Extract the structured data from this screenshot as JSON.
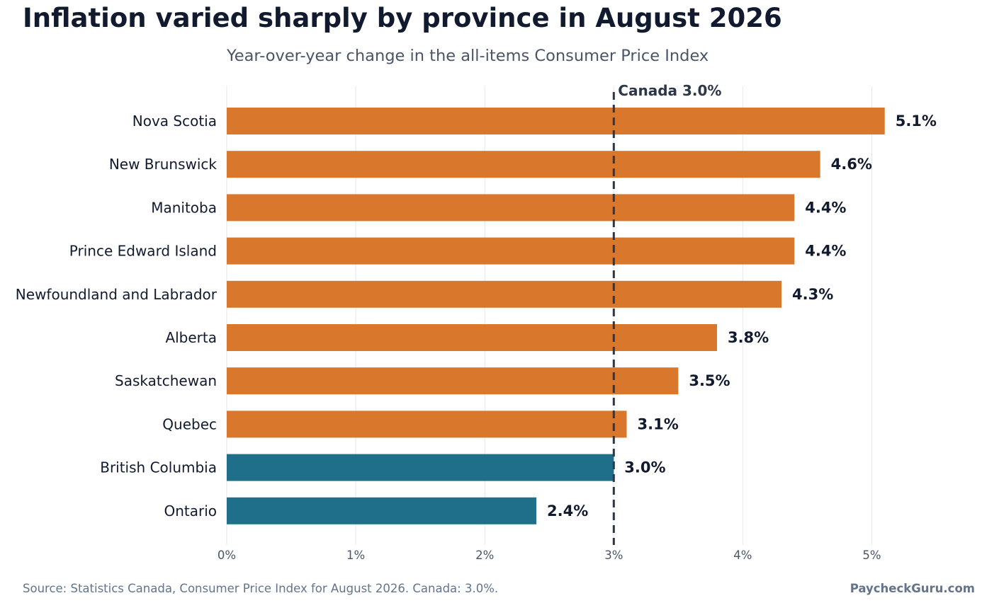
{
  "page": {
    "title": "Inflation varied sharply by province in August 2026",
    "subtitle": "Year-over-year change in the all-items Consumer Price Index",
    "source": "Source: Statistics Canada, Consumer Price Index for August 2026. Canada: 3.0%.",
    "brand": "PaycheckGuru.com"
  },
  "chart_data": {
    "type": "bar",
    "orientation": "horizontal",
    "title": "Inflation varied sharply by province in August 2026",
    "subtitle": "Year-over-year change in the all-items Consumer Price Index",
    "categories": [
      "Nova Scotia",
      "New Brunswick",
      "Manitoba",
      "Prince Edward Island",
      "Newfoundland and Labrador",
      "Alberta",
      "Saskatchewan",
      "Quebec",
      "British Columbia",
      "Ontario"
    ],
    "values": [
      5.1,
      4.6,
      4.4,
      4.4,
      4.3,
      3.8,
      3.5,
      3.1,
      3.0,
      2.4
    ],
    "value_labels": [
      "5.1%",
      "4.6%",
      "4.4%",
      "4.4%",
      "4.3%",
      "3.8%",
      "3.5%",
      "3.1%",
      "3.0%",
      "2.4%"
    ],
    "xlim": [
      0,
      5.6
    ],
    "x_ticks": [
      0,
      1,
      2,
      3,
      4,
      5
    ],
    "x_tick_labels": [
      "0%",
      "1%",
      "2%",
      "3%",
      "4%",
      "5%"
    ],
    "reference_line": {
      "value": 3.0,
      "label": "Canada 3.0%"
    },
    "colors": {
      "above_reference": "#d9782d",
      "at_or_below_reference": "#1f6f8b",
      "reference_line": "#2d3748",
      "grid": "#e5e7eb"
    },
    "grid": "vertical",
    "xlabel": "",
    "ylabel": ""
  }
}
